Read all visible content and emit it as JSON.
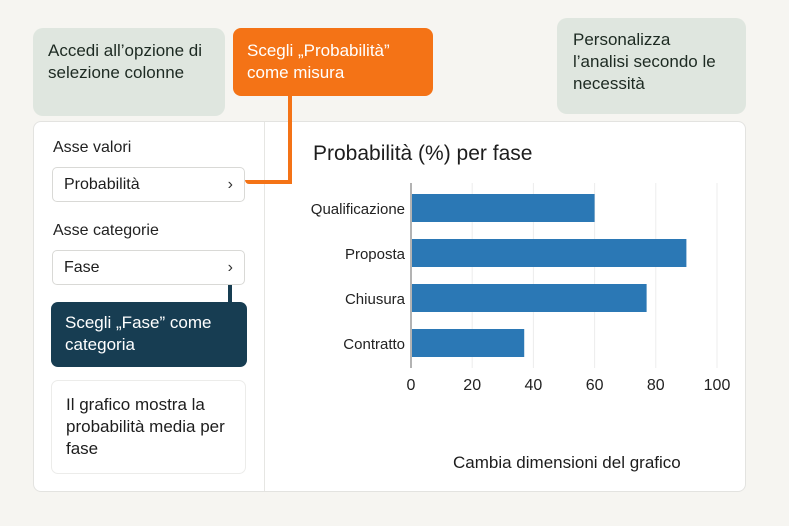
{
  "callouts": {
    "columns": "Accedi all’opzione di selezione colonne",
    "measure": "Scegli „Probabilità” come misura",
    "customize": "Personalizza l’analisi secondo le necessità",
    "category": "Scegli „Fase” come categoria",
    "info": "Il grafico mostra la probabilità media per fase",
    "resize": "Cambia dimensioni del grafico"
  },
  "sidebar": {
    "value_axis_label": "Asse valori",
    "value_axis_selected": "Probabilità",
    "category_axis_label": "Asse categorie",
    "category_axis_selected": "Fase"
  },
  "colors": {
    "accent": "#f47316",
    "dark": "#173d52",
    "bar": "#2b78b5",
    "callout_bg": "#dfe6df"
  },
  "chart_data": {
    "type": "bar",
    "orientation": "horizontal",
    "title": "Probabilità (%) per fase",
    "categories": [
      "Qualificazione",
      "Proposta",
      "Chiusura",
      "Contratto"
    ],
    "values": [
      60,
      90,
      77,
      37
    ],
    "xlim": [
      0,
      100
    ],
    "xticks": [
      0,
      20,
      40,
      60,
      80,
      100
    ],
    "grid": true,
    "color": "#2b78b5"
  }
}
